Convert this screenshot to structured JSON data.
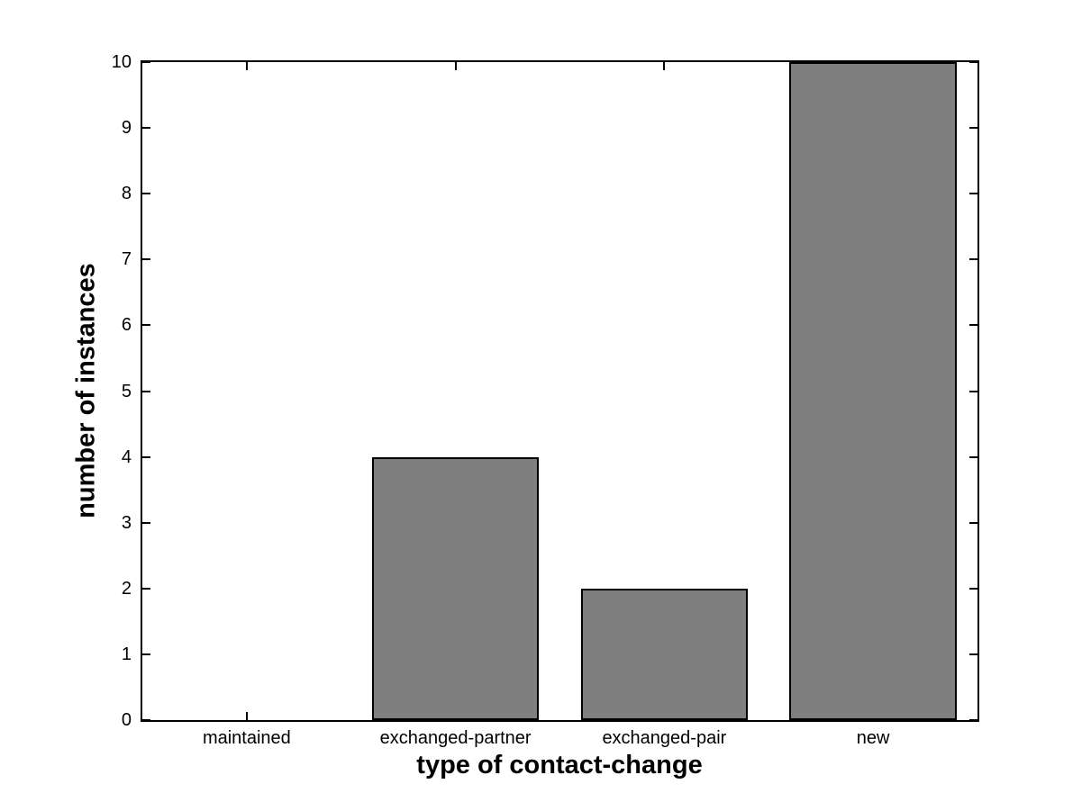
{
  "chart_data": {
    "type": "bar",
    "title": "",
    "xlabel": "type of contact-change",
    "ylabel": "number of instances",
    "categories": [
      "maintained",
      "exchanged-partner",
      "exchanged-pair",
      "new"
    ],
    "values": [
      0,
      4,
      2,
      10
    ],
    "ylim": [
      0,
      10
    ],
    "yticks": [
      "0",
      "1",
      "2",
      "3",
      "4",
      "5",
      "6",
      "7",
      "8",
      "9",
      "10"
    ],
    "bar_width_fraction": 0.2,
    "bar_color": "#7f7f7f",
    "bar_edge_color": "#000000",
    "axis_color": "#000000",
    "background_color": "#ffffff",
    "grid": false,
    "legend": "none",
    "tick_direction": "in",
    "box": true
  }
}
